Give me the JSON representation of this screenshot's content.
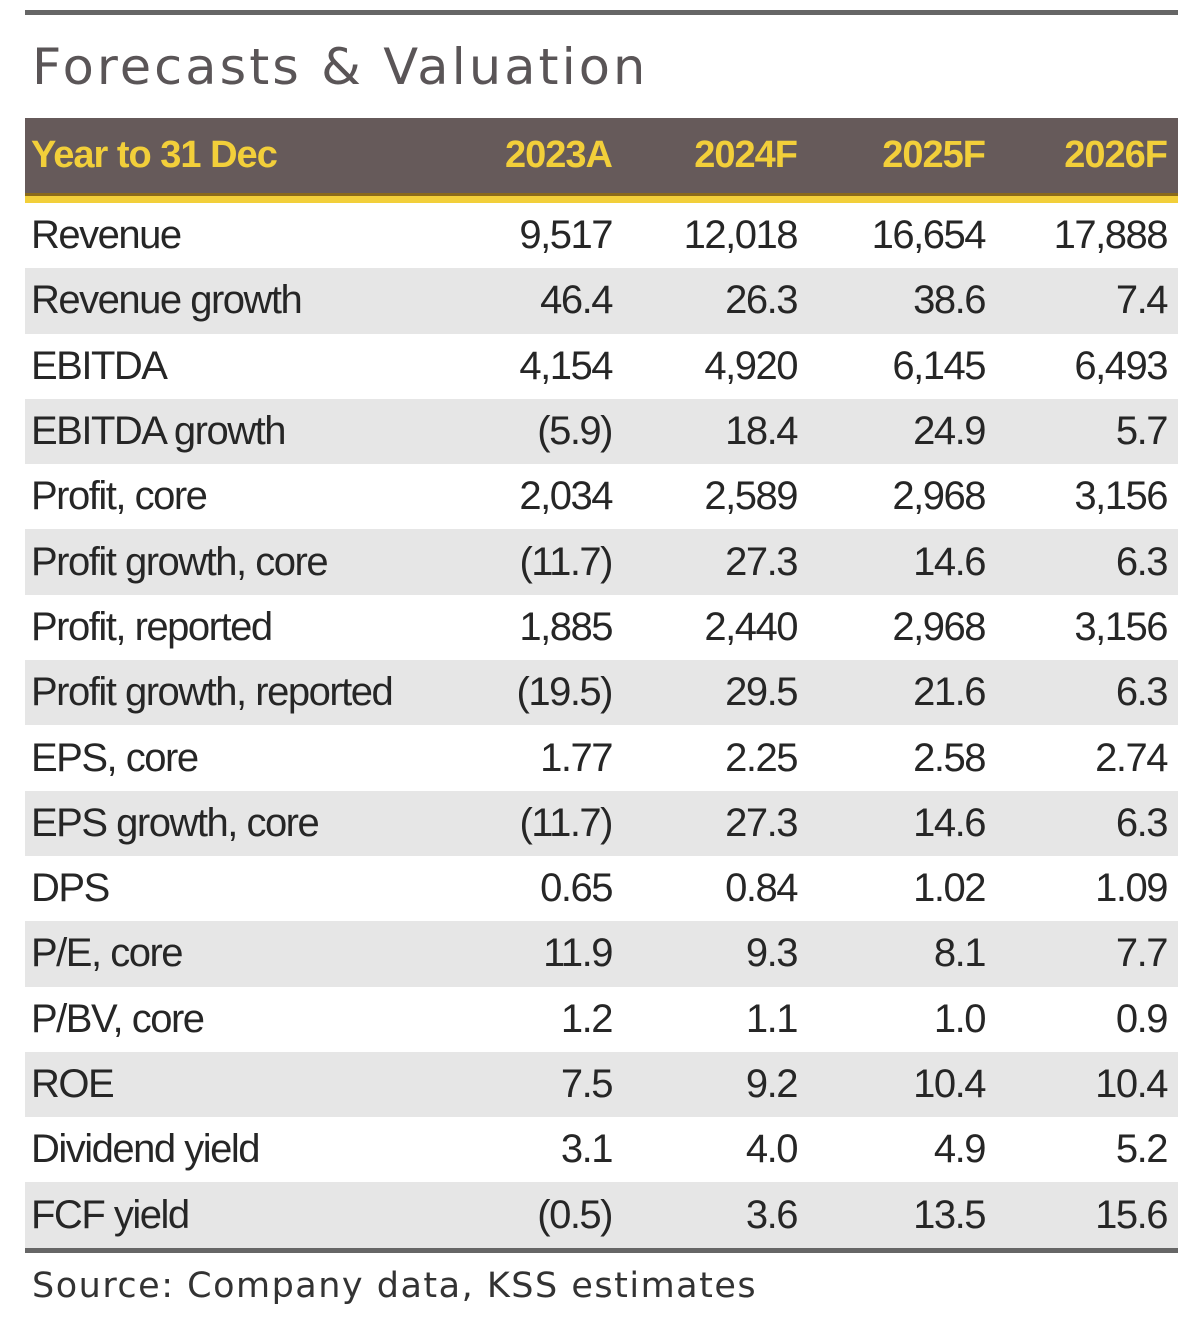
{
  "title": "Forecasts & Valuation",
  "header": [
    "Year to 31 Dec",
    "2023A",
    "2024F",
    "2025F",
    "2026F"
  ],
  "rows": [
    [
      "Revenue",
      "9,517",
      "12,018",
      "16,654",
      "17,888"
    ],
    [
      "Revenue growth",
      "46.4",
      "26.3",
      "38.6",
      "7.4"
    ],
    [
      "EBITDA",
      "4,154",
      "4,920",
      "6,145",
      "6,493"
    ],
    [
      "EBITDA growth",
      "(5.9)",
      "18.4",
      "24.9",
      "5.7"
    ],
    [
      "Profit, core",
      "2,034",
      "2,589",
      "2,968",
      "3,156"
    ],
    [
      "Profit growth, core",
      "(11.7)",
      "27.3",
      "14.6",
      "6.3"
    ],
    [
      "Profit, reported",
      "1,885",
      "2,440",
      "2,968",
      "3,156"
    ],
    [
      "Profit growth, reported",
      "(19.5)",
      "29.5",
      "21.6",
      "6.3"
    ],
    [
      "EPS, core",
      "1.77",
      "2.25",
      "2.58",
      "2.74"
    ],
    [
      "EPS growth, core",
      "(11.7)",
      "27.3",
      "14.6",
      "6.3"
    ],
    [
      "DPS",
      "0.65",
      "0.84",
      "1.02",
      "1.09"
    ],
    [
      "P/E, core",
      "11.9",
      "9.3",
      "8.1",
      "7.7"
    ],
    [
      "P/BV, core",
      "1.2",
      "1.1",
      "1.0",
      "0.9"
    ],
    [
      "ROE",
      "7.5",
      "9.2",
      "10.4",
      "10.4"
    ],
    [
      "Dividend yield",
      "3.1",
      "4.0",
      "4.9",
      "5.2"
    ],
    [
      "FCF yield",
      "(0.5)",
      "3.6",
      "13.5",
      "15.6"
    ]
  ],
  "source": "Source: Company data, KSS estimates",
  "colors": {
    "header_bg": "#665a5a",
    "header_text": "#f2cf3a",
    "alt_row": "#e6e6e6"
  }
}
